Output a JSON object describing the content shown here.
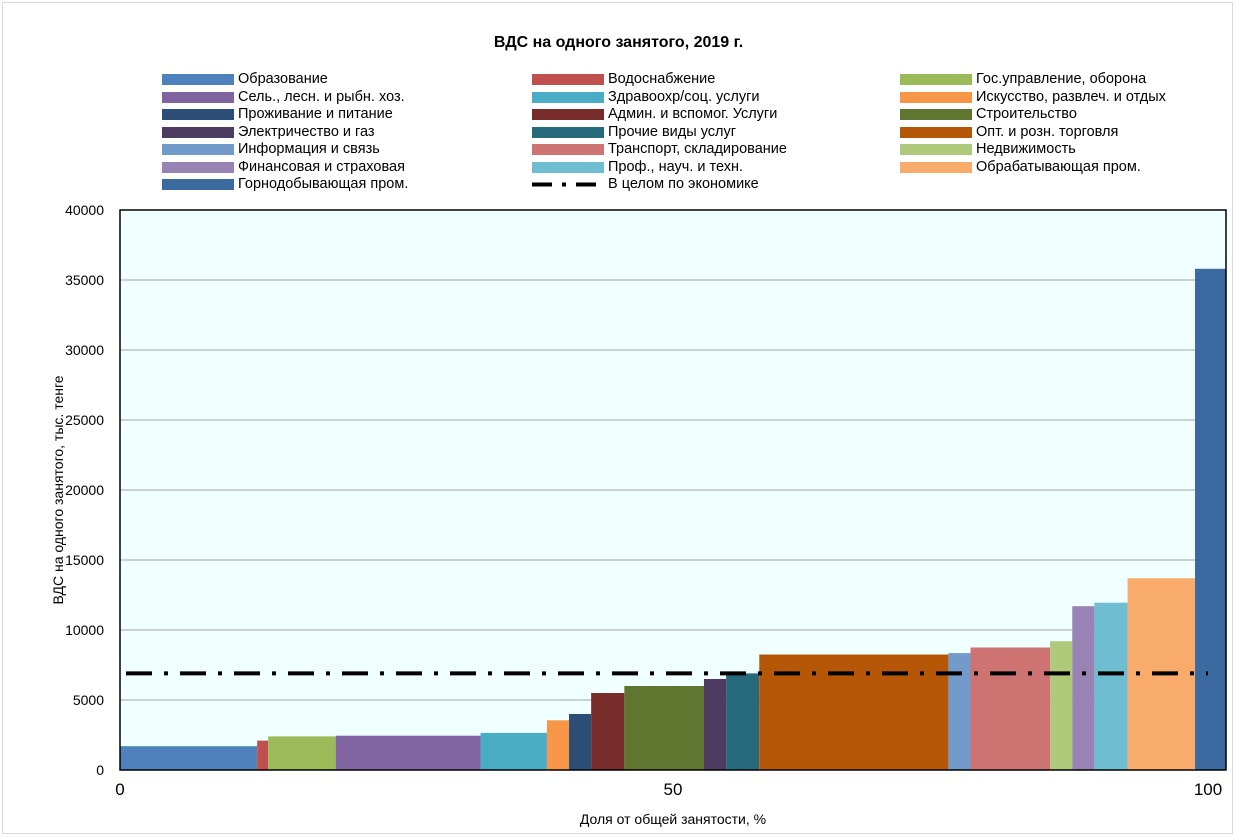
{
  "chart_data": {
    "type": "bar",
    "title": "ВДС на одного занятого, 2019 г.",
    "xlabel": "Доля от общей занятости, %",
    "ylabel": "ВДС на одного занятого, тыс. тенге",
    "xlim": [
      0,
      100
    ],
    "ylim": [
      0,
      40000
    ],
    "x_ticks": [
      "0",
      "50",
      "100"
    ],
    "y_ticks": [
      "0",
      "5000",
      "10000",
      "15000",
      "20000",
      "25000",
      "30000",
      "35000",
      "40000"
    ],
    "grid": "horizontal",
    "plot_background": "#f0ffff",
    "legend_position": "top",
    "series": [
      {
        "name": "Образование",
        "share_start": 0.0,
        "share_end": 12.4,
        "value": 1700,
        "color": "#4f81bd"
      },
      {
        "name": "Водоснабжение",
        "share_start": 12.4,
        "share_end": 13.4,
        "value": 2100,
        "color": "#c0504d"
      },
      {
        "name": "Гос.управление, оборона",
        "share_start": 13.4,
        "share_end": 19.5,
        "value": 2400,
        "color": "#9bbb59"
      },
      {
        "name": "Сель., лесн. и рыбн. хоз.",
        "share_start": 19.5,
        "share_end": 32.6,
        "value": 2450,
        "color": "#8064a2"
      },
      {
        "name": "Здравоохр/соц. услуги",
        "share_start": 32.6,
        "share_end": 38.6,
        "value": 2650,
        "color": "#4bacc6"
      },
      {
        "name": "Искусство, развлеч. и отдых",
        "share_start": 38.6,
        "share_end": 40.6,
        "value": 3550,
        "color": "#f79646"
      },
      {
        "name": "Проживание и питание",
        "share_start": 40.6,
        "share_end": 42.6,
        "value": 4000,
        "color": "#2c4d75"
      },
      {
        "name": "Админ. и вспомог. Услуги",
        "share_start": 42.6,
        "share_end": 45.6,
        "value": 5500,
        "color": "#772c2a"
      },
      {
        "name": "Строительство",
        "share_start": 45.6,
        "share_end": 52.8,
        "value": 6000,
        "color": "#5f7530"
      },
      {
        "name": "Электричество и газ",
        "share_start": 52.8,
        "share_end": 54.8,
        "value": 6500,
        "color": "#4d3b62"
      },
      {
        "name": "Прочие виды услуг",
        "share_start": 54.8,
        "share_end": 57.8,
        "value": 6900,
        "color": "#276a7c"
      },
      {
        "name": "Опт. и розн. торговля",
        "share_start": 57.8,
        "share_end": 74.9,
        "value": 8250,
        "color": "#b65708"
      },
      {
        "name": "Информация и связь",
        "share_start": 74.9,
        "share_end": 76.9,
        "value": 8350,
        "color": "#729aca"
      },
      {
        "name": "Транспорт, складирование",
        "share_start": 76.9,
        "share_end": 84.1,
        "value": 8750,
        "color": "#cd7371"
      },
      {
        "name": "Недвижимость",
        "share_start": 84.1,
        "share_end": 86.1,
        "value": 9200,
        "color": "#afc97a"
      },
      {
        "name": "Финансовая и страховая",
        "share_start": 86.1,
        "share_end": 88.1,
        "value": 11700,
        "color": "#9983b5"
      },
      {
        "name": "Проф., науч. и техн.",
        "share_start": 88.1,
        "share_end": 91.1,
        "value": 11950,
        "color": "#6fbdd1"
      },
      {
        "name": "Обрабатывающая пром.",
        "share_start": 91.1,
        "share_end": 97.2,
        "value": 13700,
        "color": "#f9ab6b"
      },
      {
        "name": "Горнодобывающая пром.",
        "share_start": 97.2,
        "share_end": 100.0,
        "value": 35800,
        "color": "#3a6aa0"
      }
    ],
    "average_line": {
      "name": "В целом по экономике",
      "value": 6900,
      "style": "dash-dot",
      "color": "#000000"
    }
  }
}
